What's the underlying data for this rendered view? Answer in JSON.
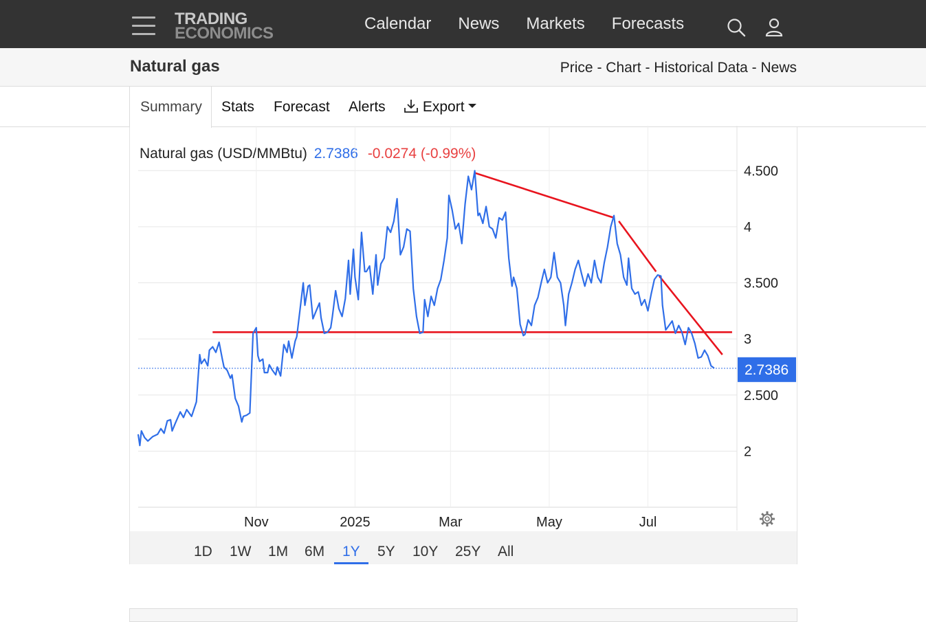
{
  "nav": {
    "logo_line1": "TRADING",
    "logo_line2": "ECONOMICS",
    "links": [
      "Calendar",
      "News",
      "Markets",
      "Forecasts"
    ],
    "search_icon": "search-icon",
    "user_icon": "user-icon",
    "menu_icon": "hamburger-menu-icon"
  },
  "header": {
    "title": "Natural gas",
    "sublinks": "Price - Chart - Historical Data - News"
  },
  "tabs": [
    "Summary",
    "Stats",
    "Forecast",
    "Alerts",
    "Export"
  ],
  "active_tab": "Summary",
  "quote": {
    "name": "Natural gas (USD/MMBtu)",
    "price": "2.7386",
    "change": "-0.0274 (-0.99%)"
  },
  "ranges": [
    "1D",
    "1W",
    "1M",
    "6M",
    "1Y",
    "5Y",
    "10Y",
    "25Y",
    "All"
  ],
  "active_range": "1Y",
  "colors": {
    "line": "#2f6ee8",
    "trend": "#e8141e",
    "change_negative": "#e84040",
    "nav_bg": "#333333"
  },
  "chart_data": {
    "type": "line",
    "y_ticks": [
      "2",
      "2.500",
      "3",
      "3.500",
      "4",
      "4.500"
    ],
    "ylim": [
      1.5,
      4.9
    ],
    "x_ticks": [
      {
        "label": "Nov",
        "x": "2024-11-01"
      },
      {
        "label": "2025",
        "x": "2025-01-01"
      },
      {
        "label": "Mar",
        "x": "2025-03-01"
      },
      {
        "label": "May",
        "x": "2025-05-01"
      },
      {
        "label": "Jul",
        "x": "2025-07-01"
      }
    ],
    "xlim": [
      "2024-08-20",
      "2025-08-25"
    ],
    "last_value_label": "2.7386",
    "last_value": 2.7386,
    "series": [
      {
        "points": [
          [
            "2024-08-20",
            2.15
          ],
          [
            "2024-08-21",
            2.05
          ],
          [
            "2024-08-22",
            2.18
          ],
          [
            "2024-08-24",
            2.12
          ],
          [
            "2024-08-26",
            2.09
          ],
          [
            "2024-08-29",
            2.13
          ],
          [
            "2024-09-01",
            2.15
          ],
          [
            "2024-09-03",
            2.2
          ],
          [
            "2024-09-05",
            2.16
          ],
          [
            "2024-09-07",
            2.27
          ],
          [
            "2024-09-09",
            2.28
          ],
          [
            "2024-09-10",
            2.18
          ],
          [
            "2024-09-12",
            2.25
          ],
          [
            "2024-09-15",
            2.35
          ],
          [
            "2024-09-17",
            2.3
          ],
          [
            "2024-09-19",
            2.37
          ],
          [
            "2024-09-22",
            2.31
          ],
          [
            "2024-09-25",
            2.44
          ],
          [
            "2024-09-27",
            2.86
          ],
          [
            "2024-09-28",
            2.78
          ],
          [
            "2024-09-30",
            2.82
          ],
          [
            "2024-10-02",
            2.76
          ],
          [
            "2024-10-03",
            2.9
          ],
          [
            "2024-10-05",
            2.93
          ],
          [
            "2024-10-07",
            2.88
          ],
          [
            "2024-10-09",
            2.97
          ],
          [
            "2024-10-11",
            2.82
          ],
          [
            "2024-10-12",
            2.75
          ],
          [
            "2024-10-14",
            2.72
          ],
          [
            "2024-10-16",
            2.65
          ],
          [
            "2024-10-17",
            2.68
          ],
          [
            "2024-10-19",
            2.47
          ],
          [
            "2024-10-21",
            2.4
          ],
          [
            "2024-10-23",
            2.26
          ],
          [
            "2024-10-24",
            2.31
          ],
          [
            "2024-10-26",
            2.32
          ],
          [
            "2024-10-28",
            2.34
          ],
          [
            "2024-10-29",
            2.7
          ],
          [
            "2024-10-30",
            3.05
          ],
          [
            "2024-11-01",
            3.1
          ],
          [
            "2024-11-02",
            2.85
          ],
          [
            "2024-11-03",
            2.8
          ],
          [
            "2024-11-05",
            2.82
          ],
          [
            "2024-11-06",
            2.7
          ],
          [
            "2024-11-08",
            2.7
          ],
          [
            "2024-11-09",
            2.77
          ],
          [
            "2024-11-11",
            2.72
          ],
          [
            "2024-11-13",
            2.68
          ],
          [
            "2024-11-14",
            2.75
          ],
          [
            "2024-11-16",
            2.67
          ],
          [
            "2024-11-18",
            2.95
          ],
          [
            "2024-11-20",
            2.88
          ],
          [
            "2024-11-21",
            2.98
          ],
          [
            "2024-11-23",
            2.83
          ],
          [
            "2024-11-25",
            2.98
          ],
          [
            "2024-11-26",
            3.02
          ],
          [
            "2024-11-28",
            3.26
          ],
          [
            "2024-11-30",
            3.5
          ],
          [
            "2024-12-01",
            3.3
          ],
          [
            "2024-12-03",
            3.47
          ],
          [
            "2024-12-04",
            3.48
          ],
          [
            "2024-12-06",
            3.18
          ],
          [
            "2024-12-08",
            3.25
          ],
          [
            "2024-12-10",
            3.32
          ],
          [
            "2024-12-11",
            3.19
          ],
          [
            "2024-12-13",
            3.05
          ],
          [
            "2024-12-15",
            3.06
          ],
          [
            "2024-12-17",
            3.1
          ],
          [
            "2024-12-18",
            3.2
          ],
          [
            "2024-12-20",
            3.43
          ],
          [
            "2024-12-22",
            3.27
          ],
          [
            "2024-12-24",
            3.2
          ],
          [
            "2024-12-26",
            3.36
          ],
          [
            "2024-12-28",
            3.7
          ],
          [
            "2024-12-29",
            3.4
          ],
          [
            "2024-12-31",
            3.8
          ],
          [
            "2025-01-01",
            3.55
          ],
          [
            "2025-01-03",
            3.35
          ],
          [
            "2025-01-05",
            3.95
          ],
          [
            "2025-01-07",
            3.6
          ],
          [
            "2025-01-08",
            3.6
          ],
          [
            "2025-01-10",
            3.65
          ],
          [
            "2025-01-12",
            3.4
          ],
          [
            "2025-01-14",
            3.75
          ],
          [
            "2025-01-15",
            3.48
          ],
          [
            "2025-01-17",
            3.67
          ],
          [
            "2025-01-19",
            3.72
          ],
          [
            "2025-01-21",
            4.0
          ],
          [
            "2025-01-23",
            3.95
          ],
          [
            "2025-01-25",
            4.05
          ],
          [
            "2025-01-27",
            4.25
          ],
          [
            "2025-01-29",
            3.75
          ],
          [
            "2025-01-31",
            3.82
          ],
          [
            "2025-02-02",
            3.98
          ],
          [
            "2025-02-04",
            3.96
          ],
          [
            "2025-02-06",
            3.45
          ],
          [
            "2025-02-08",
            3.2
          ],
          [
            "2025-02-10",
            3.05
          ],
          [
            "2025-02-12",
            3.06
          ],
          [
            "2025-02-13",
            3.35
          ],
          [
            "2025-02-15",
            3.2
          ],
          [
            "2025-02-17",
            3.38
          ],
          [
            "2025-02-19",
            3.3
          ],
          [
            "2025-02-21",
            3.45
          ],
          [
            "2025-02-23",
            3.53
          ],
          [
            "2025-02-25",
            3.7
          ],
          [
            "2025-02-27",
            3.9
          ],
          [
            "2025-02-28",
            4.28
          ],
          [
            "2025-03-02",
            4.15
          ],
          [
            "2025-03-04",
            3.98
          ],
          [
            "2025-03-06",
            4.03
          ],
          [
            "2025-03-08",
            3.85
          ],
          [
            "2025-03-10",
            4.2
          ],
          [
            "2025-03-12",
            4.45
          ],
          [
            "2025-03-14",
            4.33
          ],
          [
            "2025-03-16",
            4.5
          ],
          [
            "2025-03-18",
            4.1
          ],
          [
            "2025-03-19",
            4.12
          ],
          [
            "2025-03-21",
            4.03
          ],
          [
            "2025-03-23",
            4.18
          ],
          [
            "2025-03-25",
            4.0
          ],
          [
            "2025-03-27",
            3.98
          ],
          [
            "2025-03-29",
            3.9
          ],
          [
            "2025-03-31",
            4.08
          ],
          [
            "2025-04-02",
            4.06
          ],
          [
            "2025-04-04",
            4.13
          ],
          [
            "2025-04-06",
            3.72
          ],
          [
            "2025-04-08",
            3.47
          ],
          [
            "2025-04-09",
            3.55
          ],
          [
            "2025-04-11",
            3.45
          ],
          [
            "2025-04-13",
            3.13
          ],
          [
            "2025-04-15",
            3.03
          ],
          [
            "2025-04-16",
            3.04
          ],
          [
            "2025-04-18",
            3.17
          ],
          [
            "2025-04-20",
            3.12
          ],
          [
            "2025-04-22",
            3.3
          ],
          [
            "2025-04-24",
            3.37
          ],
          [
            "2025-04-26",
            3.5
          ],
          [
            "2025-04-28",
            3.62
          ],
          [
            "2025-04-30",
            3.5
          ],
          [
            "2025-05-02",
            3.55
          ],
          [
            "2025-05-04",
            3.77
          ],
          [
            "2025-05-06",
            3.55
          ],
          [
            "2025-05-08",
            3.5
          ],
          [
            "2025-05-10",
            3.3
          ],
          [
            "2025-05-11",
            3.12
          ],
          [
            "2025-05-13",
            3.4
          ],
          [
            "2025-05-15",
            3.5
          ],
          [
            "2025-05-17",
            3.62
          ],
          [
            "2025-05-19",
            3.7
          ],
          [
            "2025-05-21",
            3.58
          ],
          [
            "2025-05-23",
            3.47
          ],
          [
            "2025-05-25",
            3.58
          ],
          [
            "2025-05-27",
            3.5
          ],
          [
            "2025-05-29",
            3.7
          ],
          [
            "2025-05-31",
            3.55
          ],
          [
            "2025-06-02",
            3.5
          ],
          [
            "2025-06-04",
            3.68
          ],
          [
            "2025-06-06",
            3.82
          ],
          [
            "2025-06-08",
            4.0
          ],
          [
            "2025-06-10",
            4.1
          ],
          [
            "2025-06-12",
            3.85
          ],
          [
            "2025-06-14",
            3.75
          ],
          [
            "2025-06-16",
            3.55
          ],
          [
            "2025-06-18",
            3.48
          ],
          [
            "2025-06-19",
            3.72
          ],
          [
            "2025-06-21",
            3.45
          ],
          [
            "2025-06-23",
            3.4
          ],
          [
            "2025-06-25",
            3.42
          ],
          [
            "2025-06-27",
            3.3
          ],
          [
            "2025-06-29",
            3.35
          ],
          [
            "2025-07-01",
            3.25
          ],
          [
            "2025-07-03",
            3.4
          ],
          [
            "2025-07-05",
            3.53
          ],
          [
            "2025-07-07",
            3.57
          ],
          [
            "2025-07-09",
            3.56
          ],
          [
            "2025-07-10",
            3.3
          ],
          [
            "2025-07-12",
            3.08
          ],
          [
            "2025-07-14",
            3.12
          ],
          [
            "2025-07-16",
            3.16
          ],
          [
            "2025-07-18",
            3.05
          ],
          [
            "2025-07-20",
            3.12
          ],
          [
            "2025-07-22",
            3.06
          ],
          [
            "2025-07-24",
            2.95
          ],
          [
            "2025-07-26",
            3.1
          ],
          [
            "2025-07-28",
            3.05
          ],
          [
            "2025-07-30",
            2.96
          ],
          [
            "2025-08-01",
            2.83
          ],
          [
            "2025-08-03",
            2.84
          ],
          [
            "2025-08-05",
            2.9
          ],
          [
            "2025-08-07",
            2.85
          ],
          [
            "2025-08-09",
            2.76
          ],
          [
            "2025-08-11",
            2.7386
          ]
        ]
      }
    ],
    "trend_lines": [
      {
        "from": [
          "2024-10-05",
          3.06
        ],
        "to": [
          "2025-08-22",
          3.06
        ]
      },
      {
        "from": [
          "2025-03-16",
          4.48
        ],
        "to": [
          "2025-06-10",
          4.08
        ]
      },
      {
        "from": [
          "2025-06-13",
          4.05
        ],
        "to": [
          "2025-07-06",
          3.6
        ]
      },
      {
        "from": [
          "2025-07-08",
          3.56
        ],
        "to": [
          "2025-08-16",
          2.86
        ]
      }
    ]
  }
}
